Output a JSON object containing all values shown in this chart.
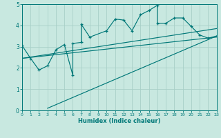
{
  "xlabel": "Humidex (Indice chaleur)",
  "ylabel": "",
  "xlim": [
    0,
    23
  ],
  "ylim": [
    0,
    5
  ],
  "bg_color": "#c8e8e0",
  "grid_color": "#a8d0c8",
  "line_color": "#007878",
  "main_series_x": [
    0,
    1,
    2,
    3,
    4,
    5,
    6,
    6,
    7,
    7,
    8,
    10,
    11,
    12,
    13,
    14,
    15,
    16,
    16,
    17,
    18,
    19,
    20,
    21,
    22,
    23
  ],
  "main_series_y": [
    3.05,
    2.45,
    1.9,
    2.1,
    2.85,
    3.1,
    1.65,
    3.15,
    3.2,
    4.05,
    3.45,
    3.75,
    4.3,
    4.25,
    3.75,
    4.5,
    4.7,
    4.95,
    4.1,
    4.1,
    4.35,
    4.35,
    3.95,
    3.55,
    3.4,
    3.5
  ],
  "lower_line_x": [
    3,
    23
  ],
  "lower_line_y": [
    0.1,
    3.5
  ],
  "upper_line_x": [
    0,
    23
  ],
  "upper_line_y": [
    2.45,
    3.85
  ],
  "mid_line_x": [
    0,
    23
  ],
  "mid_line_y": [
    2.45,
    3.45
  ],
  "xticks": [
    0,
    1,
    2,
    3,
    4,
    5,
    6,
    7,
    8,
    9,
    10,
    11,
    12,
    13,
    14,
    15,
    16,
    17,
    18,
    19,
    20,
    21,
    22,
    23
  ],
  "yticks": [
    0,
    1,
    2,
    3,
    4,
    5
  ]
}
